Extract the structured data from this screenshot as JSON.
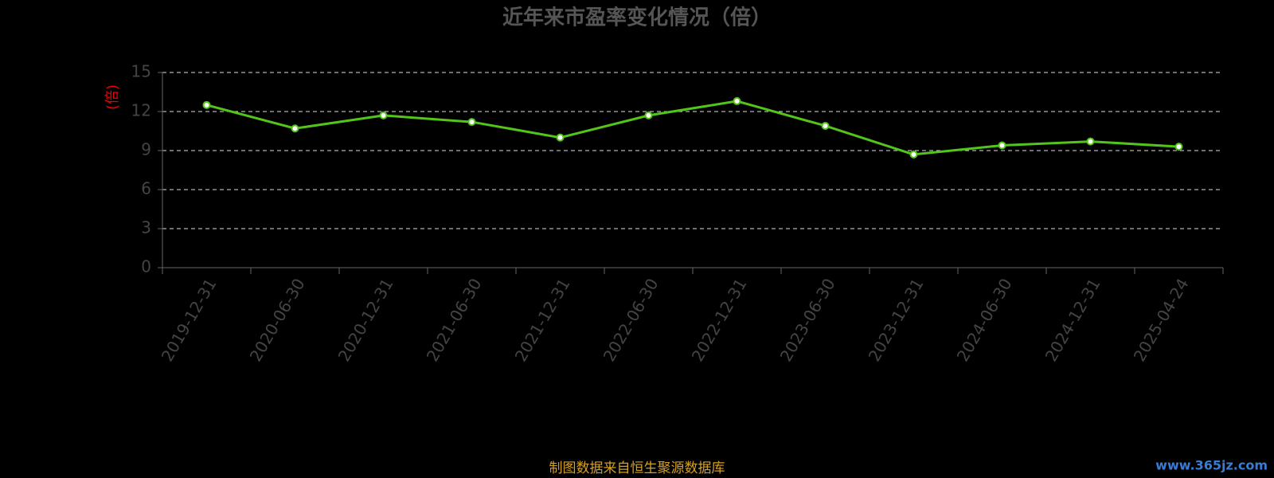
{
  "chart_data": {
    "type": "line",
    "title": "近年来市盈率变化情况（倍）",
    "y_label": "(倍)",
    "categories": [
      "2019-12-31",
      "2020-06-30",
      "2020-12-31",
      "2021-06-30",
      "2021-12-31",
      "2022-06-30",
      "2022-12-31",
      "2023-06-30",
      "2023-12-31",
      "2024-06-30",
      "2024-12-31",
      "2025-04-24"
    ],
    "series": [
      {
        "color": "#52c41a",
        "values": [
          12.5,
          10.7,
          11.7,
          11.2,
          10.0,
          11.7,
          12.8,
          10.9,
          8.7,
          9.4,
          9.7,
          9.3
        ]
      }
    ],
    "ylim": [
      0,
      15
    ],
    "yticks": [
      0,
      3,
      6,
      9,
      12,
      15
    ],
    "grid": true,
    "source": "制图数据来自恒生聚源数据库",
    "watermark": "www.365jz.com"
  }
}
